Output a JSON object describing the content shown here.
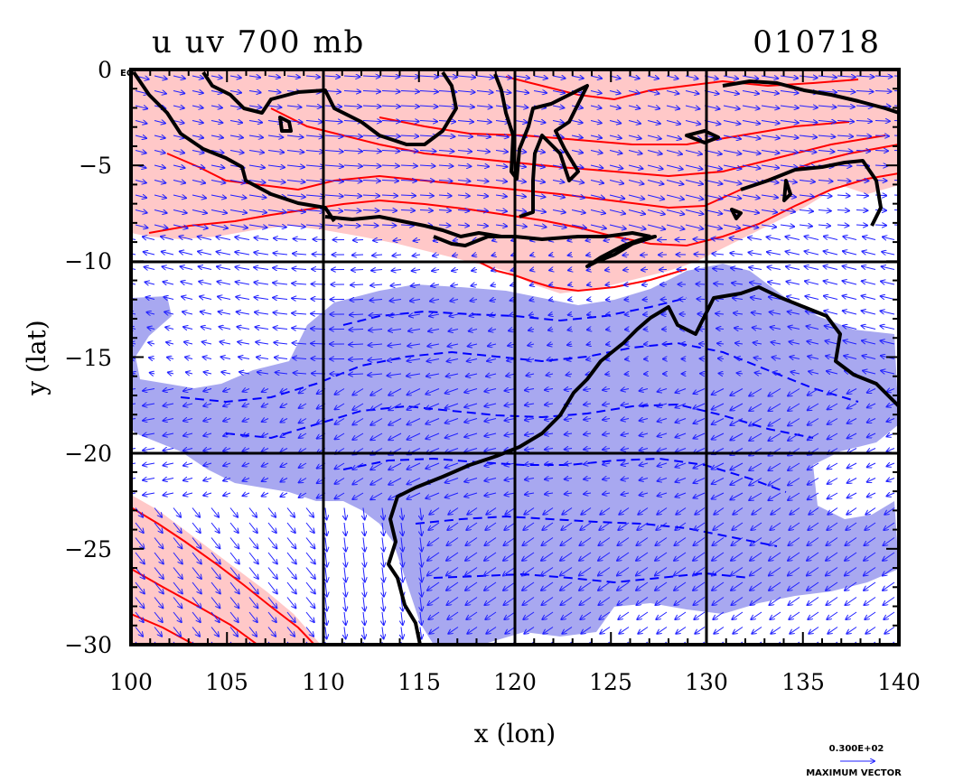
{
  "title_left": "u uv 700 mb",
  "title_right": "010718",
  "eq_label": "EQ",
  "xlabel": "x (lon)",
  "ylabel": "y (lat)",
  "x_ticks": [
    "100",
    "105",
    "110",
    "115",
    "120",
    "125",
    "130",
    "135",
    "140"
  ],
  "y_ticks": [
    "0",
    "−5",
    "−10",
    "−15",
    "−20",
    "−25",
    "−30"
  ],
  "max_vector_value": "0.300E+02",
  "max_vector_label": "MAXIMUM VECTOR",
  "colors": {
    "positive_fill": "#ffc8c8",
    "positive_contour": "#ff0000",
    "negative_fill": "#a8a8f0",
    "negative_contour": "#0000ff",
    "vector": "#2020ff",
    "coastline": "#000000"
  },
  "chart_data": {
    "type": "map",
    "field": "u wind component with uv vectors",
    "level_mb": 700,
    "xlim": [
      100,
      140
    ],
    "ylim": [
      -30,
      0
    ],
    "grid_lon": [
      110,
      120,
      130
    ],
    "grid_lat": [
      -10,
      -20
    ],
    "positive_regions": [
      "north of about 9°S (Indonesia / Java Sea)",
      "southwest corner south of 25°S, west of 110°E"
    ],
    "negative_regions": [
      "broad band 11°S–28°S centred over northern Australia and the Indian Ocean"
    ]
  }
}
